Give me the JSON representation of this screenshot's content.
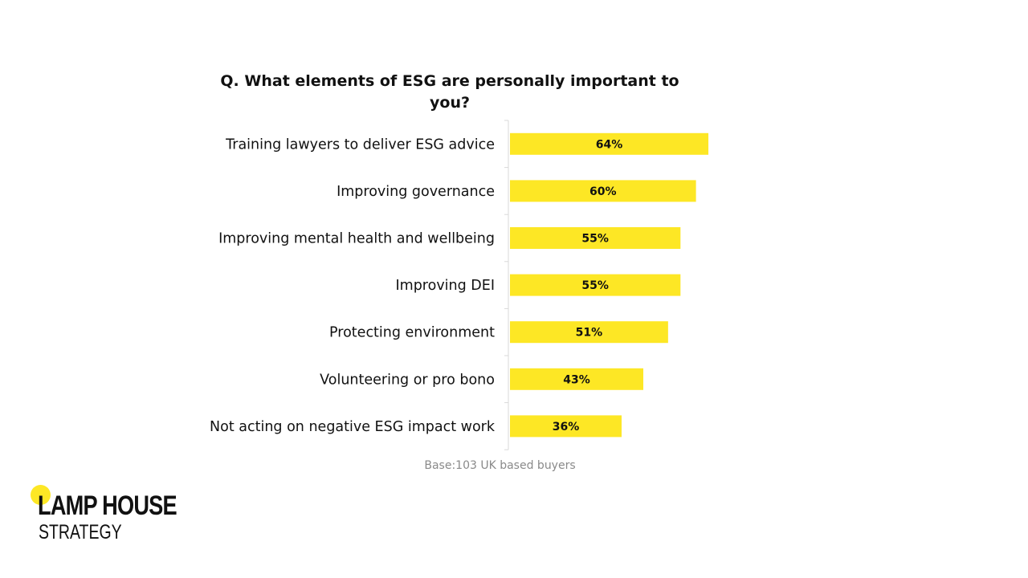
{
  "chart_data": {
    "type": "bar",
    "orientation": "horizontal",
    "title": "Q. What elements of ESG are personally important to you?",
    "categories": [
      "Training lawyers to deliver ESG advice",
      "Improving governance",
      "Improving mental health and wellbeing",
      "Improving DEI",
      "Protecting environment",
      "Volunteering or pro bono",
      "Not acting on negative ESG impact work"
    ],
    "values": [
      64,
      60,
      55,
      55,
      51,
      43,
      36
    ],
    "value_labels": [
      "64%",
      "60%",
      "55%",
      "55%",
      "51%",
      "43%",
      "36%"
    ],
    "unit": "%",
    "xlim": [
      0,
      100
    ],
    "grid": false,
    "legend": "none",
    "bar_color": "#fde725",
    "note": "Base:103 UK based buyers"
  },
  "brand": {
    "name": "LAMP HOUSE",
    "tagline": "STRATEGY",
    "accent": "#fde725"
  }
}
